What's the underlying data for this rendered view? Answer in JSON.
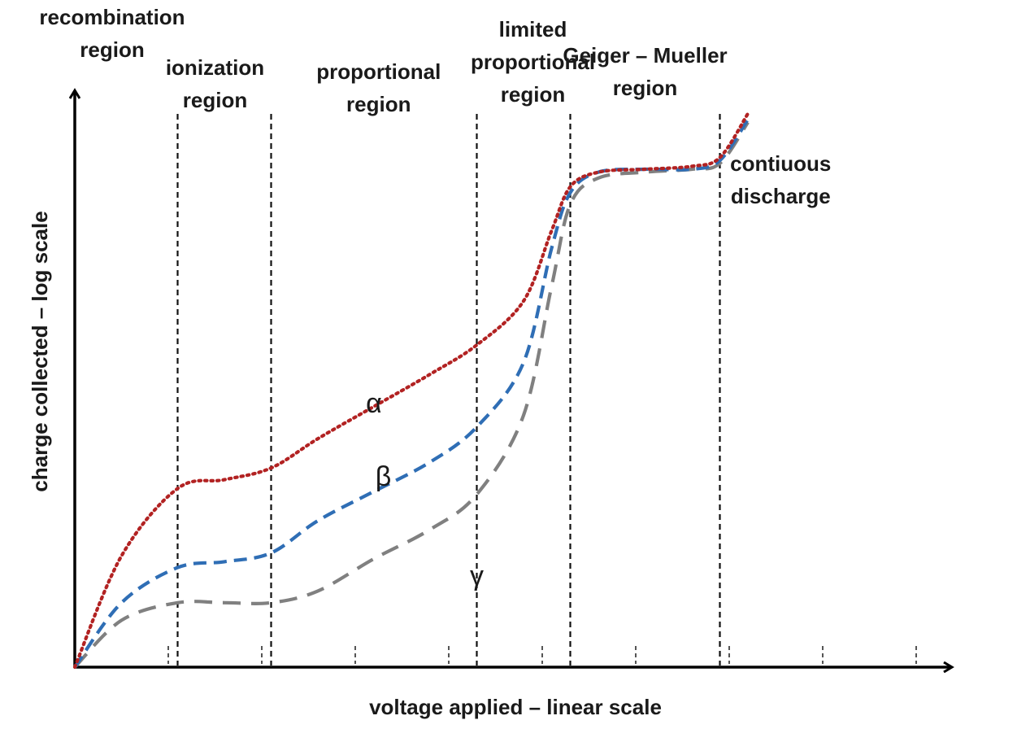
{
  "chart_data": {
    "type": "line",
    "title": "",
    "xlabel": "voltage applied – linear scale",
    "ylabel": "charge collected – log scale",
    "xlim": [
      0,
      10
    ],
    "ylim": [
      0,
      10
    ],
    "x_scale": "linear",
    "y_scale": "log",
    "grid": false,
    "legend": "none",
    "x_ticks": [
      1,
      2,
      3,
      4,
      5,
      6,
      7,
      8,
      9
    ],
    "tick_style": "dashed",
    "region_boundaries": [
      1.1,
      2.1,
      4.3,
      5.3,
      6.9
    ],
    "regions": [
      {
        "label": [
          "recombination",
          "region"
        ],
        "center_x": 0.4
      },
      {
        "label": [
          "ionization",
          "region"
        ],
        "center_x": 1.5
      },
      {
        "label": [
          "proportional",
          "region"
        ],
        "center_x": 3.25
      },
      {
        "label": [
          "limited",
          "proportional",
          "region"
        ],
        "center_x": 4.9
      },
      {
        "label": [
          "Geiger – Mueller",
          "region"
        ],
        "center_x": 6.1
      },
      {
        "label": [
          "contiuous",
          "discharge"
        ],
        "center_x": 7.55
      }
    ],
    "series": [
      {
        "name": "α",
        "color": "#b22222",
        "line_style": "dotted",
        "points": [
          [
            0,
            0
          ],
          [
            0.5,
            1.9
          ],
          [
            1.1,
            3.05
          ],
          [
            1.6,
            3.2
          ],
          [
            2.1,
            3.4
          ],
          [
            2.6,
            3.9
          ],
          [
            3.2,
            4.45
          ],
          [
            3.8,
            5.0
          ],
          [
            4.3,
            5.5
          ],
          [
            4.8,
            6.25
          ],
          [
            5.1,
            7.45
          ],
          [
            5.3,
            8.2
          ],
          [
            5.6,
            8.45
          ],
          [
            6.1,
            8.5
          ],
          [
            6.6,
            8.55
          ],
          [
            6.9,
            8.7
          ],
          [
            7.2,
            9.45
          ]
        ]
      },
      {
        "name": "β",
        "color": "#2f6eb5",
        "line_style": "dashed",
        "points": [
          [
            0,
            0
          ],
          [
            0.5,
            1.1
          ],
          [
            1.1,
            1.7
          ],
          [
            1.6,
            1.8
          ],
          [
            2.1,
            1.95
          ],
          [
            2.6,
            2.5
          ],
          [
            3.2,
            3.0
          ],
          [
            3.8,
            3.5
          ],
          [
            4.3,
            4.1
          ],
          [
            4.8,
            5.2
          ],
          [
            5.1,
            7.15
          ],
          [
            5.3,
            8.1
          ],
          [
            5.6,
            8.45
          ],
          [
            6.1,
            8.5
          ],
          [
            6.6,
            8.5
          ],
          [
            6.9,
            8.65
          ],
          [
            7.2,
            9.35
          ]
        ]
      },
      {
        "name": "γ",
        "color": "#808080",
        "line_style": "dashed",
        "points": [
          [
            0,
            0
          ],
          [
            0.5,
            0.8
          ],
          [
            1.1,
            1.1
          ],
          [
            1.6,
            1.1
          ],
          [
            2.1,
            1.1
          ],
          [
            2.6,
            1.3
          ],
          [
            3.2,
            1.85
          ],
          [
            3.8,
            2.35
          ],
          [
            4.3,
            2.95
          ],
          [
            4.8,
            4.3
          ],
          [
            5.1,
            6.5
          ],
          [
            5.3,
            7.9
          ],
          [
            5.6,
            8.35
          ],
          [
            6.1,
            8.45
          ],
          [
            6.6,
            8.5
          ],
          [
            6.9,
            8.6
          ],
          [
            7.2,
            9.3
          ]
        ]
      }
    ],
    "series_labels": [
      {
        "text": "α",
        "x": 3.2,
        "y": 4.35
      },
      {
        "text": "β",
        "x": 3.3,
        "y": 3.1
      },
      {
        "text": "γ",
        "x": 4.3,
        "y": 1.4
      }
    ]
  }
}
